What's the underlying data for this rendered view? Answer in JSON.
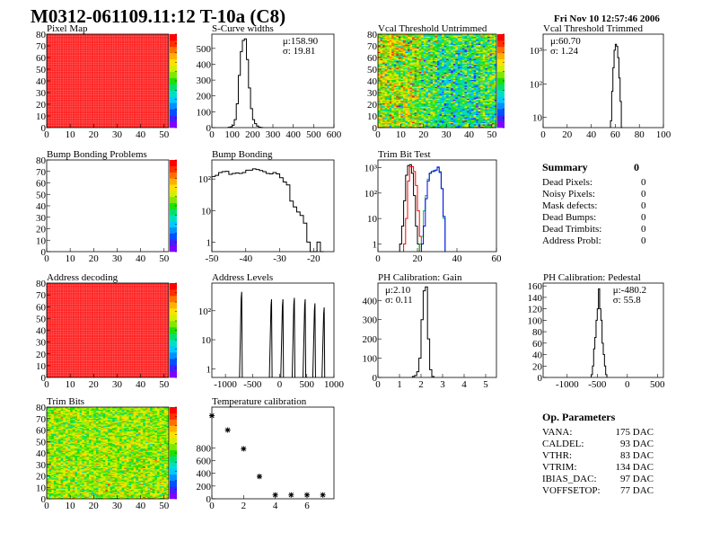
{
  "title": "M0312-061109.11:12 T-10a (C8)",
  "date": "Fri Nov 10 12:57:46 2006",
  "colors": {
    "hist_line": "#000000",
    "trim_series": [
      "#000000",
      "#ff0000",
      "#00cc00",
      "#0000ff"
    ],
    "heatmap_full": "#ff2020"
  },
  "chart_data": [
    {
      "id": "pixel-map",
      "title": "Pixel Map",
      "type": "heatmap",
      "fill": "uniform",
      "value": 1,
      "xlim": [
        0,
        52
      ],
      "ylim": [
        0,
        80
      ],
      "xticks": [
        0,
        10,
        20,
        30,
        40,
        50
      ],
      "yticks": [
        0,
        10,
        20,
        30,
        40,
        50,
        60,
        70,
        80
      ],
      "colorbar": true
    },
    {
      "id": "s-curve-widths",
      "title": "S-Curve widths",
      "type": "bar",
      "log": false,
      "xlim": [
        0,
        600
      ],
      "ylim": [
        0,
        590
      ],
      "xticks": [
        0,
        100,
        200,
        300,
        400,
        500,
        600
      ],
      "yticks": [
        0,
        100,
        200,
        300,
        400,
        500
      ],
      "binwidth": 10,
      "bins": [
        [
          80,
          2
        ],
        [
          90,
          5
        ],
        [
          100,
          15
        ],
        [
          110,
          50
        ],
        [
          120,
          150
        ],
        [
          130,
          330
        ],
        [
          140,
          480
        ],
        [
          150,
          550
        ],
        [
          160,
          560
        ],
        [
          170,
          430
        ],
        [
          180,
          250
        ],
        [
          190,
          120
        ],
        [
          200,
          50
        ],
        [
          210,
          25
        ],
        [
          220,
          10
        ],
        [
          230,
          3
        ],
        [
          240,
          1
        ]
      ],
      "stats": [
        "μ:158.90",
        "σ: 19.81"
      ],
      "stats_pos": "top-right"
    },
    {
      "id": "vcal-untrimmed",
      "title": "Vcal Threshold Untrimmed",
      "type": "heatmap",
      "fill": "noise",
      "palette_range": [
        90,
        130
      ],
      "mean": 110,
      "spread": 6,
      "xlim": [
        0,
        52
      ],
      "ylim": [
        0,
        80
      ],
      "xticks": [
        0,
        10,
        20,
        30,
        40,
        50
      ],
      "yticks": [
        0,
        10,
        20,
        30,
        40,
        50,
        60,
        70,
        80
      ],
      "colorbar": true
    },
    {
      "id": "vcal-trimmed",
      "title": "Vcal Threshold Trimmed",
      "type": "bar",
      "log": true,
      "xlim": [
        0,
        100
      ],
      "ylim": [
        5,
        3000
      ],
      "xticks": [
        0,
        20,
        40,
        60,
        80,
        100
      ],
      "yticks": [
        10,
        100,
        1000
      ],
      "binwidth": 1,
      "bins": [
        [
          56,
          8
        ],
        [
          57,
          60
        ],
        [
          58,
          300
        ],
        [
          59,
          1000
        ],
        [
          60,
          1500
        ],
        [
          61,
          1300
        ],
        [
          62,
          600
        ],
        [
          63,
          150
        ],
        [
          64,
          30
        ],
        [
          65,
          5
        ]
      ],
      "stats": [
        "μ:60.70",
        "σ: 1.24"
      ],
      "stats_pos": "top-left"
    },
    {
      "id": "bump-bonding-problems",
      "title": "Bump Bonding Problems",
      "type": "heatmap",
      "fill": "empty",
      "xlim": [
        0,
        52
      ],
      "ylim": [
        0,
        80
      ],
      "xticks": [
        0,
        10,
        20,
        30,
        40,
        50
      ],
      "yticks": [
        0,
        10,
        20,
        30,
        40,
        50,
        60,
        70,
        80
      ],
      "colorbar": true
    },
    {
      "id": "bump-bonding",
      "title": "Bump Bonding",
      "type": "bar",
      "log": true,
      "xlim": [
        -50,
        -14
      ],
      "ylim": [
        0.5,
        400
      ],
      "xticks": [
        -50,
        -40,
        -30,
        -20
      ],
      "yticks": [
        1,
        10,
        100
      ],
      "binwidth": 1,
      "bins": [
        [
          -50,
          120
        ],
        [
          -49,
          130
        ],
        [
          -48,
          160
        ],
        [
          -47,
          170
        ],
        [
          -46,
          175
        ],
        [
          -45,
          140
        ],
        [
          -44,
          150
        ],
        [
          -43,
          155
        ],
        [
          -42,
          150
        ],
        [
          -41,
          160
        ],
        [
          -40,
          190
        ],
        [
          -39,
          190
        ],
        [
          -38,
          210
        ],
        [
          -37,
          200
        ],
        [
          -36,
          185
        ],
        [
          -35,
          170
        ],
        [
          -34,
          150
        ],
        [
          -33,
          145
        ],
        [
          -32,
          160
        ],
        [
          -31,
          145
        ],
        [
          -30,
          110
        ],
        [
          -29,
          80
        ],
        [
          -28,
          65
        ],
        [
          -27,
          20
        ],
        [
          -26,
          13
        ],
        [
          -25,
          9
        ],
        [
          -24,
          7
        ],
        [
          -23,
          4
        ],
        [
          -22,
          1
        ],
        [
          -21,
          0
        ],
        [
          -20,
          0
        ],
        [
          -19,
          1
        ],
        [
          -18,
          0
        ]
      ]
    },
    {
      "id": "trim-bit-test",
      "title": "Trim Bit Test",
      "type": "bar",
      "log": true,
      "xlim": [
        0,
        60
      ],
      "ylim": [
        0.5,
        2000
      ],
      "xticks": [
        0,
        20,
        40,
        60
      ],
      "yticks": [
        1,
        10,
        100,
        1000
      ],
      "binwidth": 1,
      "series": [
        {
          "bins": [
            [
              11,
              1
            ],
            [
              12,
              5
            ],
            [
              13,
              50
            ],
            [
              14,
              500
            ],
            [
              15,
              1200
            ],
            [
              16,
              1300
            ],
            [
              17,
              600
            ],
            [
              18,
              80
            ],
            [
              19,
              5
            ],
            [
              20,
              1
            ]
          ]
        },
        {
          "bins": [
            [
              13,
              1
            ],
            [
              14,
              10
            ],
            [
              15,
              300
            ],
            [
              16,
              1100
            ],
            [
              17,
              1100
            ],
            [
              18,
              700
            ],
            [
              19,
              200
            ],
            [
              20,
              20
            ],
            [
              21,
              2
            ]
          ]
        },
        {
          "bins": [
            [
              21,
              1
            ],
            [
              22,
              2
            ],
            [
              23,
              20
            ],
            [
              24,
              80
            ],
            [
              25,
              350
            ],
            [
              26,
              600
            ],
            [
              27,
              700
            ],
            [
              28,
              700
            ],
            [
              29,
              800
            ],
            [
              30,
              1000
            ],
            [
              31,
              700
            ],
            [
              32,
              150
            ],
            [
              33,
              10
            ]
          ]
        },
        {
          "bins": [
            [
              22,
              1
            ],
            [
              23,
              5
            ],
            [
              24,
              60
            ],
            [
              25,
              300
            ],
            [
              26,
              600
            ],
            [
              27,
              700
            ],
            [
              28,
              750
            ],
            [
              29,
              800
            ],
            [
              30,
              1050
            ],
            [
              31,
              650
            ],
            [
              32,
              150
            ],
            [
              33,
              12
            ]
          ]
        }
      ]
    },
    {
      "id": "address-decoding",
      "title": "Address decoding",
      "type": "heatmap",
      "fill": "uniform",
      "value": 1,
      "xlim": [
        0,
        52
      ],
      "ylim": [
        0,
        80
      ],
      "xticks": [
        0,
        10,
        20,
        30,
        40,
        50
      ],
      "yticks": [
        0,
        10,
        20,
        30,
        40,
        50,
        60,
        70,
        80
      ],
      "colorbar": true
    },
    {
      "id": "address-levels",
      "title": "Address Levels",
      "type": "bar",
      "log": true,
      "xlim": [
        -1250,
        1000
      ],
      "ylim": [
        0.5,
        900
      ],
      "xticks": [
        -1000,
        -500,
        0,
        500,
        1000
      ],
      "yticks": [
        1,
        10,
        100
      ],
      "peaks": [
        [
          -700,
          450
        ],
        [
          -150,
          250
        ],
        [
          60,
          250
        ],
        [
          270,
          280
        ],
        [
          470,
          250
        ],
        [
          650,
          180
        ],
        [
          820,
          130
        ]
      ]
    },
    {
      "id": "ph-gain",
      "title": "PH Calibration: Gain",
      "type": "bar",
      "log": false,
      "xlim": [
        0,
        5.5
      ],
      "ylim": [
        0,
        490
      ],
      "xticks": [
        0,
        1,
        2,
        3,
        4,
        5
      ],
      "yticks": [
        0,
        100,
        200,
        300,
        400
      ],
      "binwidth": 0.1,
      "bins": [
        [
          1.6,
          5
        ],
        [
          1.7,
          10
        ],
        [
          1.8,
          30
        ],
        [
          1.9,
          100
        ],
        [
          2.0,
          300
        ],
        [
          2.1,
          450
        ],
        [
          2.2,
          470
        ],
        [
          2.3,
          200
        ],
        [
          2.4,
          40
        ],
        [
          2.5,
          5
        ]
      ],
      "stats": [
        "μ:2.10",
        "σ: 0.11"
      ],
      "stats_pos": "top-left"
    },
    {
      "id": "ph-pedestal",
      "title": "PH Calibration: Pedestal",
      "type": "bar",
      "log": false,
      "xlim": [
        -1400,
        600
      ],
      "ylim": [
        0,
        165
      ],
      "xticks": [
        -1000,
        -500,
        0,
        500
      ],
      "yticks": [
        0,
        20,
        40,
        60,
        80,
        100,
        120,
        140,
        160
      ],
      "binwidth": 20,
      "bins": [
        [
          -600,
          5
        ],
        [
          -580,
          20
        ],
        [
          -560,
          50
        ],
        [
          -540,
          70
        ],
        [
          -520,
          100
        ],
        [
          -500,
          120
        ],
        [
          -480,
          155
        ],
        [
          -460,
          120
        ],
        [
          -440,
          100
        ],
        [
          -420,
          60
        ],
        [
          -400,
          40
        ],
        [
          -380,
          20
        ],
        [
          -360,
          5
        ]
      ],
      "stats": [
        "μ:-480.2",
        "σ: 55.8"
      ],
      "stats_pos": "top-right"
    },
    {
      "id": "trim-bits",
      "title": "Trim Bits",
      "type": "heatmap",
      "fill": "noise",
      "palette_range": [
        0,
        16
      ],
      "mean": 9.5,
      "spread": 1.6,
      "xlim": [
        0,
        52
      ],
      "ylim": [
        0,
        80
      ],
      "xticks": [
        0,
        10,
        20,
        30,
        40,
        50
      ],
      "yticks": [
        0,
        10,
        20,
        30,
        40,
        50,
        60,
        70,
        80
      ],
      "colorbar": true
    },
    {
      "id": "temperature-calibration",
      "title": "Temperature calibration",
      "type": "scatter",
      "log": false,
      "xlim": [
        0,
        7.7
      ],
      "ylim": [
        0,
        1440
      ],
      "xticks": [
        0,
        2,
        4,
        6
      ],
      "yticks": [
        0,
        200,
        400,
        600,
        800
      ],
      "points": [
        [
          0,
          1305
        ],
        [
          1,
          1080
        ],
        [
          2,
          785
        ],
        [
          3,
          350
        ],
        [
          4,
          60
        ],
        [
          5,
          60
        ],
        [
          6,
          60
        ],
        [
          7,
          60
        ]
      ]
    }
  ],
  "summary": {
    "header": "Summary",
    "total": "0",
    "rows": [
      {
        "label": "Dead Pixels:",
        "value": "0"
      },
      {
        "label": "Noisy Pixels:",
        "value": "0"
      },
      {
        "label": "Mask defects:",
        "value": "0"
      },
      {
        "label": "Dead Bumps:",
        "value": "0"
      },
      {
        "label": "Dead Trimbits:",
        "value": "0"
      },
      {
        "label": "Address Probl:",
        "value": "0"
      }
    ]
  },
  "op_params": {
    "header": "Op. Parameters",
    "rows": [
      {
        "label": "VANA:",
        "value": "175 DAC"
      },
      {
        "label": "CALDEL:",
        "value": "93 DAC"
      },
      {
        "label": "VTHR:",
        "value": "83 DAC"
      },
      {
        "label": "VTRIM:",
        "value": "134 DAC"
      },
      {
        "label": "IBIAS_DAC:",
        "value": "97 DAC"
      },
      {
        "label": "VOFFSETOP:",
        "value": "77 DAC"
      }
    ]
  }
}
